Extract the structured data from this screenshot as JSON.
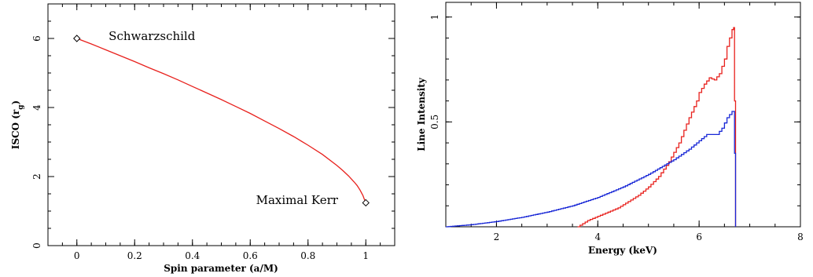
{
  "chart_data": [
    {
      "type": "line",
      "xlabel": "Spin parameter (a/M)",
      "ylabel": "ISCO (r_g)",
      "ylabel_main": "ISCO (r",
      "ylabel_sub": "g",
      "ylabel_close": ")",
      "xlim": [
        -0.1,
        1.1
      ],
      "ylim": [
        0,
        7
      ],
      "xticks": [
        "0",
        "0.2",
        "0.4",
        "0.6",
        "0.8",
        "1"
      ],
      "xtick_values": [
        0,
        0.2,
        0.4,
        0.6,
        0.8,
        1
      ],
      "yticks": [
        "0",
        "2",
        "4",
        "6"
      ],
      "ytick_values": [
        0,
        2,
        4,
        6
      ],
      "series": [
        {
          "color": "#e8211d",
          "x": [
            0,
            0.05,
            0.1,
            0.15,
            0.2,
            0.25,
            0.3,
            0.35,
            0.4,
            0.45,
            0.5,
            0.55,
            0.6,
            0.65,
            0.7,
            0.75,
            0.8,
            0.85,
            0.9,
            0.92,
            0.94,
            0.96,
            0.97,
            0.98,
            0.99,
            0.995,
            1.0
          ],
          "y": [
            6.0,
            5.84,
            5.67,
            5.5,
            5.33,
            5.15,
            4.98,
            4.8,
            4.61,
            4.42,
            4.23,
            4.03,
            3.83,
            3.61,
            3.39,
            3.16,
            2.91,
            2.64,
            2.32,
            2.18,
            2.02,
            1.84,
            1.74,
            1.61,
            1.45,
            1.34,
            1.24
          ]
        }
      ],
      "markers": [
        {
          "x": 0,
          "y": 6,
          "shape": "diamond"
        },
        {
          "x": 1,
          "y": 1.24,
          "shape": "diamond"
        }
      ],
      "annotations": [
        {
          "text": "Schwarzschild",
          "x": 0.11,
          "y": 5.95
        },
        {
          "text": "Maximal Kerr",
          "x": 0.62,
          "y": 1.2
        }
      ]
    },
    {
      "type": "line",
      "xlabel": "Energy (keV)",
      "ylabel": "Line Intensity",
      "xlim": [
        1,
        8
      ],
      "ylim": [
        0,
        1.07
      ],
      "xticks": [
        "2",
        "4",
        "6",
        "8"
      ],
      "xtick_values": [
        2,
        4,
        6,
        8
      ],
      "yticks": [
        "0.5",
        "1"
      ],
      "ytick_values": [
        0.5,
        1
      ],
      "series": [
        {
          "color": "#e8211d",
          "x": [
            3.6,
            3.8,
            4.0,
            4.2,
            4.4,
            4.6,
            4.8,
            5.0,
            5.2,
            5.4,
            5.6,
            5.8,
            5.95,
            6.0,
            6.1,
            6.2,
            6.3,
            6.4,
            6.5,
            6.55,
            6.6,
            6.65,
            6.68,
            6.7,
            6.72
          ],
          "y": [
            0.0,
            0.03,
            0.05,
            0.07,
            0.09,
            0.12,
            0.15,
            0.19,
            0.24,
            0.31,
            0.4,
            0.52,
            0.6,
            0.64,
            0.68,
            0.71,
            0.7,
            0.73,
            0.8,
            0.86,
            0.9,
            0.94,
            0.95,
            0.6,
            0.0
          ]
        },
        {
          "color": "#1726d6",
          "x": [
            1.0,
            1.5,
            2.0,
            2.5,
            3.0,
            3.5,
            4.0,
            4.5,
            5.0,
            5.5,
            5.8,
            6.0,
            6.15,
            6.25,
            6.35,
            6.45,
            6.55,
            6.65,
            6.7,
            6.72
          ],
          "y": [
            0.0,
            0.01,
            0.025,
            0.045,
            0.07,
            0.1,
            0.14,
            0.19,
            0.25,
            0.32,
            0.37,
            0.41,
            0.44,
            0.44,
            0.44,
            0.47,
            0.52,
            0.55,
            0.35,
            0.0
          ]
        }
      ]
    }
  ]
}
